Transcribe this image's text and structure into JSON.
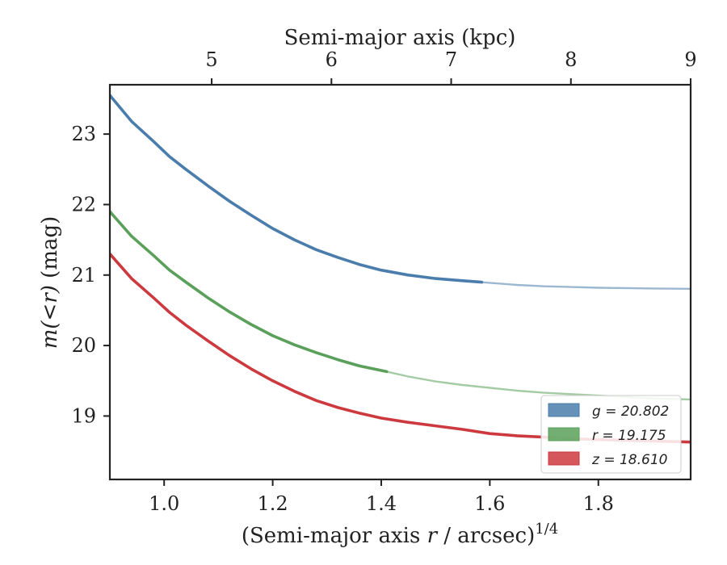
{
  "chart_data": {
    "type": "line",
    "xlabel_prefix": "(Semi-major axis ",
    "xlabel_var": "r",
    "xlabel_suffix": " / arcsec)",
    "xlabel_sup": "1/4",
    "ylabel_var": "m(<r)",
    "ylabel_suffix": " (mag)",
    "top_xlabel": "Semi-major axis (kpc)",
    "xlim": [
      0.9,
      1.97
    ],
    "ylim": [
      23.7,
      18.1
    ],
    "y_inverted": true,
    "x_ticks": [
      1.0,
      1.2,
      1.4,
      1.6,
      1.8
    ],
    "x_tick_labels": [
      "1.0",
      "1.2",
      "1.4",
      "1.6",
      "1.8"
    ],
    "y_ticks": [
      19,
      20,
      21,
      22,
      23
    ],
    "y_tick_labels": [
      "19",
      "20",
      "21",
      "22",
      "23"
    ],
    "top_ticks_kpc": [
      5,
      6,
      7,
      8,
      9
    ],
    "top_tick_labels": [
      "5",
      "6",
      "7",
      "8",
      "9"
    ],
    "top_axis_reference": {
      "kpc": [
        5,
        9
      ],
      "x": [
        1.0876,
        1.97
      ]
    },
    "legend_position": "lower-right",
    "series": [
      {
        "name": "g = 20.802",
        "color": "#4a7dac",
        "x": [
          0.9,
          0.94,
          0.98,
          1.01,
          1.04,
          1.08,
          1.12,
          1.16,
          1.2,
          1.24,
          1.28,
          1.32,
          1.36,
          1.4,
          1.45,
          1.5,
          1.55,
          1.6,
          1.65,
          1.7,
          1.75,
          1.8,
          1.85,
          1.9,
          1.97
        ],
        "y": [
          23.55,
          23.18,
          22.9,
          22.68,
          22.5,
          22.27,
          22.05,
          21.85,
          21.66,
          21.5,
          21.36,
          21.25,
          21.15,
          21.07,
          21.0,
          20.95,
          20.92,
          20.89,
          20.86,
          20.84,
          20.83,
          20.82,
          20.815,
          20.81,
          20.805
        ],
        "x_solid_end": 1.585
      },
      {
        "name": "r = 19.175",
        "color": "#5aa05a",
        "x": [
          0.9,
          0.94,
          0.98,
          1.01,
          1.04,
          1.08,
          1.12,
          1.16,
          1.2,
          1.24,
          1.28,
          1.32,
          1.36,
          1.41,
          1.45,
          1.5,
          1.55,
          1.6,
          1.65,
          1.7,
          1.75,
          1.8,
          1.85,
          1.9,
          1.97
        ],
        "y": [
          21.9,
          21.55,
          21.28,
          21.07,
          20.9,
          20.68,
          20.48,
          20.3,
          20.14,
          20.01,
          19.9,
          19.8,
          19.71,
          19.63,
          19.56,
          19.49,
          19.44,
          19.4,
          19.36,
          19.33,
          19.31,
          19.29,
          19.27,
          19.25,
          19.235
        ],
        "x_solid_end": 1.41
      },
      {
        "name": "z = 18.610",
        "color": "#cc3a3f",
        "x": [
          0.9,
          0.94,
          0.98,
          1.01,
          1.04,
          1.08,
          1.12,
          1.16,
          1.2,
          1.24,
          1.28,
          1.32,
          1.36,
          1.4,
          1.45,
          1.5,
          1.55,
          1.6,
          1.65,
          1.7,
          1.75,
          1.8,
          1.85,
          1.9,
          1.97
        ],
        "y": [
          21.3,
          20.95,
          20.68,
          20.47,
          20.29,
          20.07,
          19.86,
          19.67,
          19.5,
          19.35,
          19.22,
          19.12,
          19.04,
          18.97,
          18.91,
          18.86,
          18.81,
          18.75,
          18.72,
          18.7,
          18.68,
          18.665,
          18.655,
          18.645,
          18.63
        ],
        "x_solid_end": 1.97
      }
    ]
  }
}
